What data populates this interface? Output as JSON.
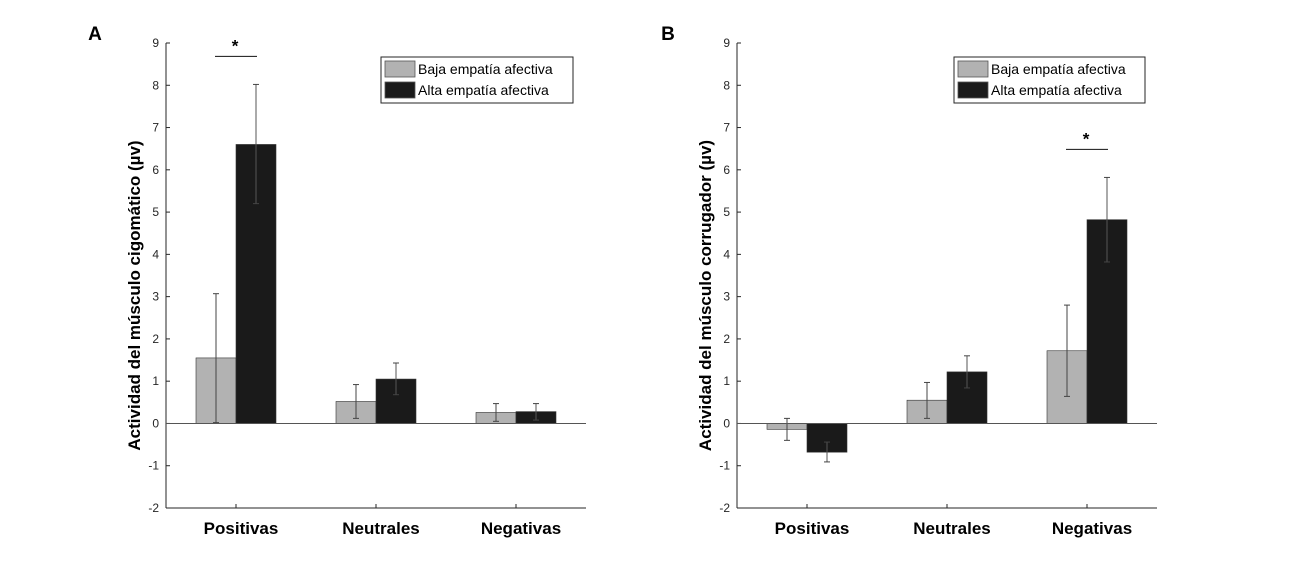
{
  "chart_data": [
    {
      "type": "bar",
      "panel_label": "A",
      "ylabel": "Actividad del músculo cigomático (µv)",
      "categories": [
        "Positivas",
        "Neutrales",
        "Negativas"
      ],
      "ylim": [
        -2,
        9
      ],
      "yticks": [
        -2,
        -1,
        0,
        1,
        2,
        3,
        4,
        5,
        6,
        7,
        8,
        9
      ],
      "grid": false,
      "legend_placement": "top-right",
      "series": [
        {
          "name": "Baja empatía afectiva",
          "color": "#b2b2b2",
          "values": [
            1.55,
            0.52,
            0.26
          ],
          "err_low": [
            0.02,
            0.12,
            0.05
          ],
          "err_high": [
            3.07,
            0.92,
            0.47
          ]
        },
        {
          "name": "Alta empatía afectiva",
          "color": "#1a1a1a",
          "values": [
            6.6,
            1.05,
            0.28
          ],
          "err_low": [
            5.2,
            0.68,
            0.08
          ],
          "err_high": [
            8.02,
            1.43,
            0.47
          ]
        }
      ],
      "significance": [
        {
          "category": "Positivas",
          "label": "*"
        }
      ]
    },
    {
      "type": "bar",
      "panel_label": "B",
      "ylabel": "Actividad del músculo corrugador (µv)",
      "categories": [
        "Positivas",
        "Neutrales",
        "Negativas"
      ],
      "ylim": [
        -2,
        9
      ],
      "yticks": [
        -2,
        -1,
        0,
        1,
        2,
        3,
        4,
        5,
        6,
        7,
        8,
        9
      ],
      "grid": false,
      "legend_placement": "top-right",
      "series": [
        {
          "name": "Baja empatía afectiva",
          "color": "#b2b2b2",
          "values": [
            -0.14,
            0.55,
            1.72
          ],
          "err_low": [
            -0.4,
            0.12,
            0.64
          ],
          "err_high": [
            0.12,
            0.97,
            2.8
          ]
        },
        {
          "name": "Alta empatía afectiva",
          "color": "#1a1a1a",
          "values": [
            -0.68,
            1.22,
            4.82
          ],
          "err_low": [
            -0.91,
            0.84,
            3.82
          ],
          "err_high": [
            -0.44,
            1.6,
            5.82
          ]
        }
      ],
      "significance": [
        {
          "category": "Negativas",
          "label": "*"
        }
      ]
    }
  ]
}
